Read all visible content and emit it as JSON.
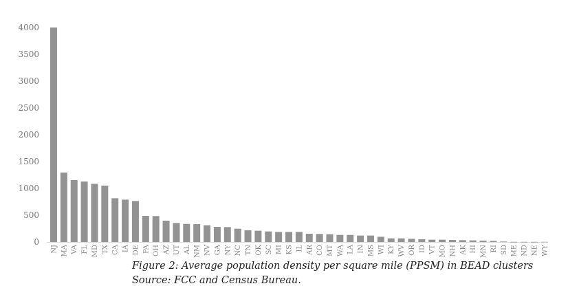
{
  "chart_data": {
    "type": "bar",
    "categories": [
      "NJ",
      "MA",
      "VA",
      "FL",
      "MD",
      "TX",
      "CA",
      "IA",
      "DE",
      "PA",
      "OH",
      "AZ",
      "UT",
      "AL",
      "NM",
      "NV",
      "GA",
      "NY",
      "NC",
      "TN",
      "OK",
      "SC",
      "MI",
      "KS",
      "IL",
      "AR",
      "CO",
      "MT",
      "WA",
      "LA",
      "IN",
      "MS",
      "WI",
      "KY",
      "WV",
      "OR",
      "ID",
      "VT",
      "MO",
      "NH",
      "AK",
      "HI",
      "MN",
      "RI",
      "SD",
      "ME",
      "ND",
      "NE",
      "WY"
    ],
    "values": [
      4000,
      1295,
      1154,
      1128,
      1085,
      1051,
      816,
      790,
      765,
      487,
      483,
      397,
      355,
      337,
      333,
      312,
      282,
      278,
      248,
      218,
      210,
      197,
      188,
      188,
      188,
      154,
      150,
      145,
      132,
      132,
      120,
      120,
      98,
      68,
      68,
      60,
      51,
      43,
      43,
      38,
      34,
      30,
      26,
      21,
      9,
      3,
      3,
      3,
      3
    ],
    "ylim": [
      0,
      4000
    ],
    "yticks": [
      "0",
      "500",
      "1000",
      "1500",
      "2000",
      "2500",
      "3000",
      "3500",
      "4000"
    ],
    "grid": false,
    "bar_color": "#939393"
  },
  "caption": {
    "line1": "Figure 2: Average population density per square mile (PPSM) in BEAD clusters",
    "line2": "Source: FCC and Census Bureau."
  }
}
